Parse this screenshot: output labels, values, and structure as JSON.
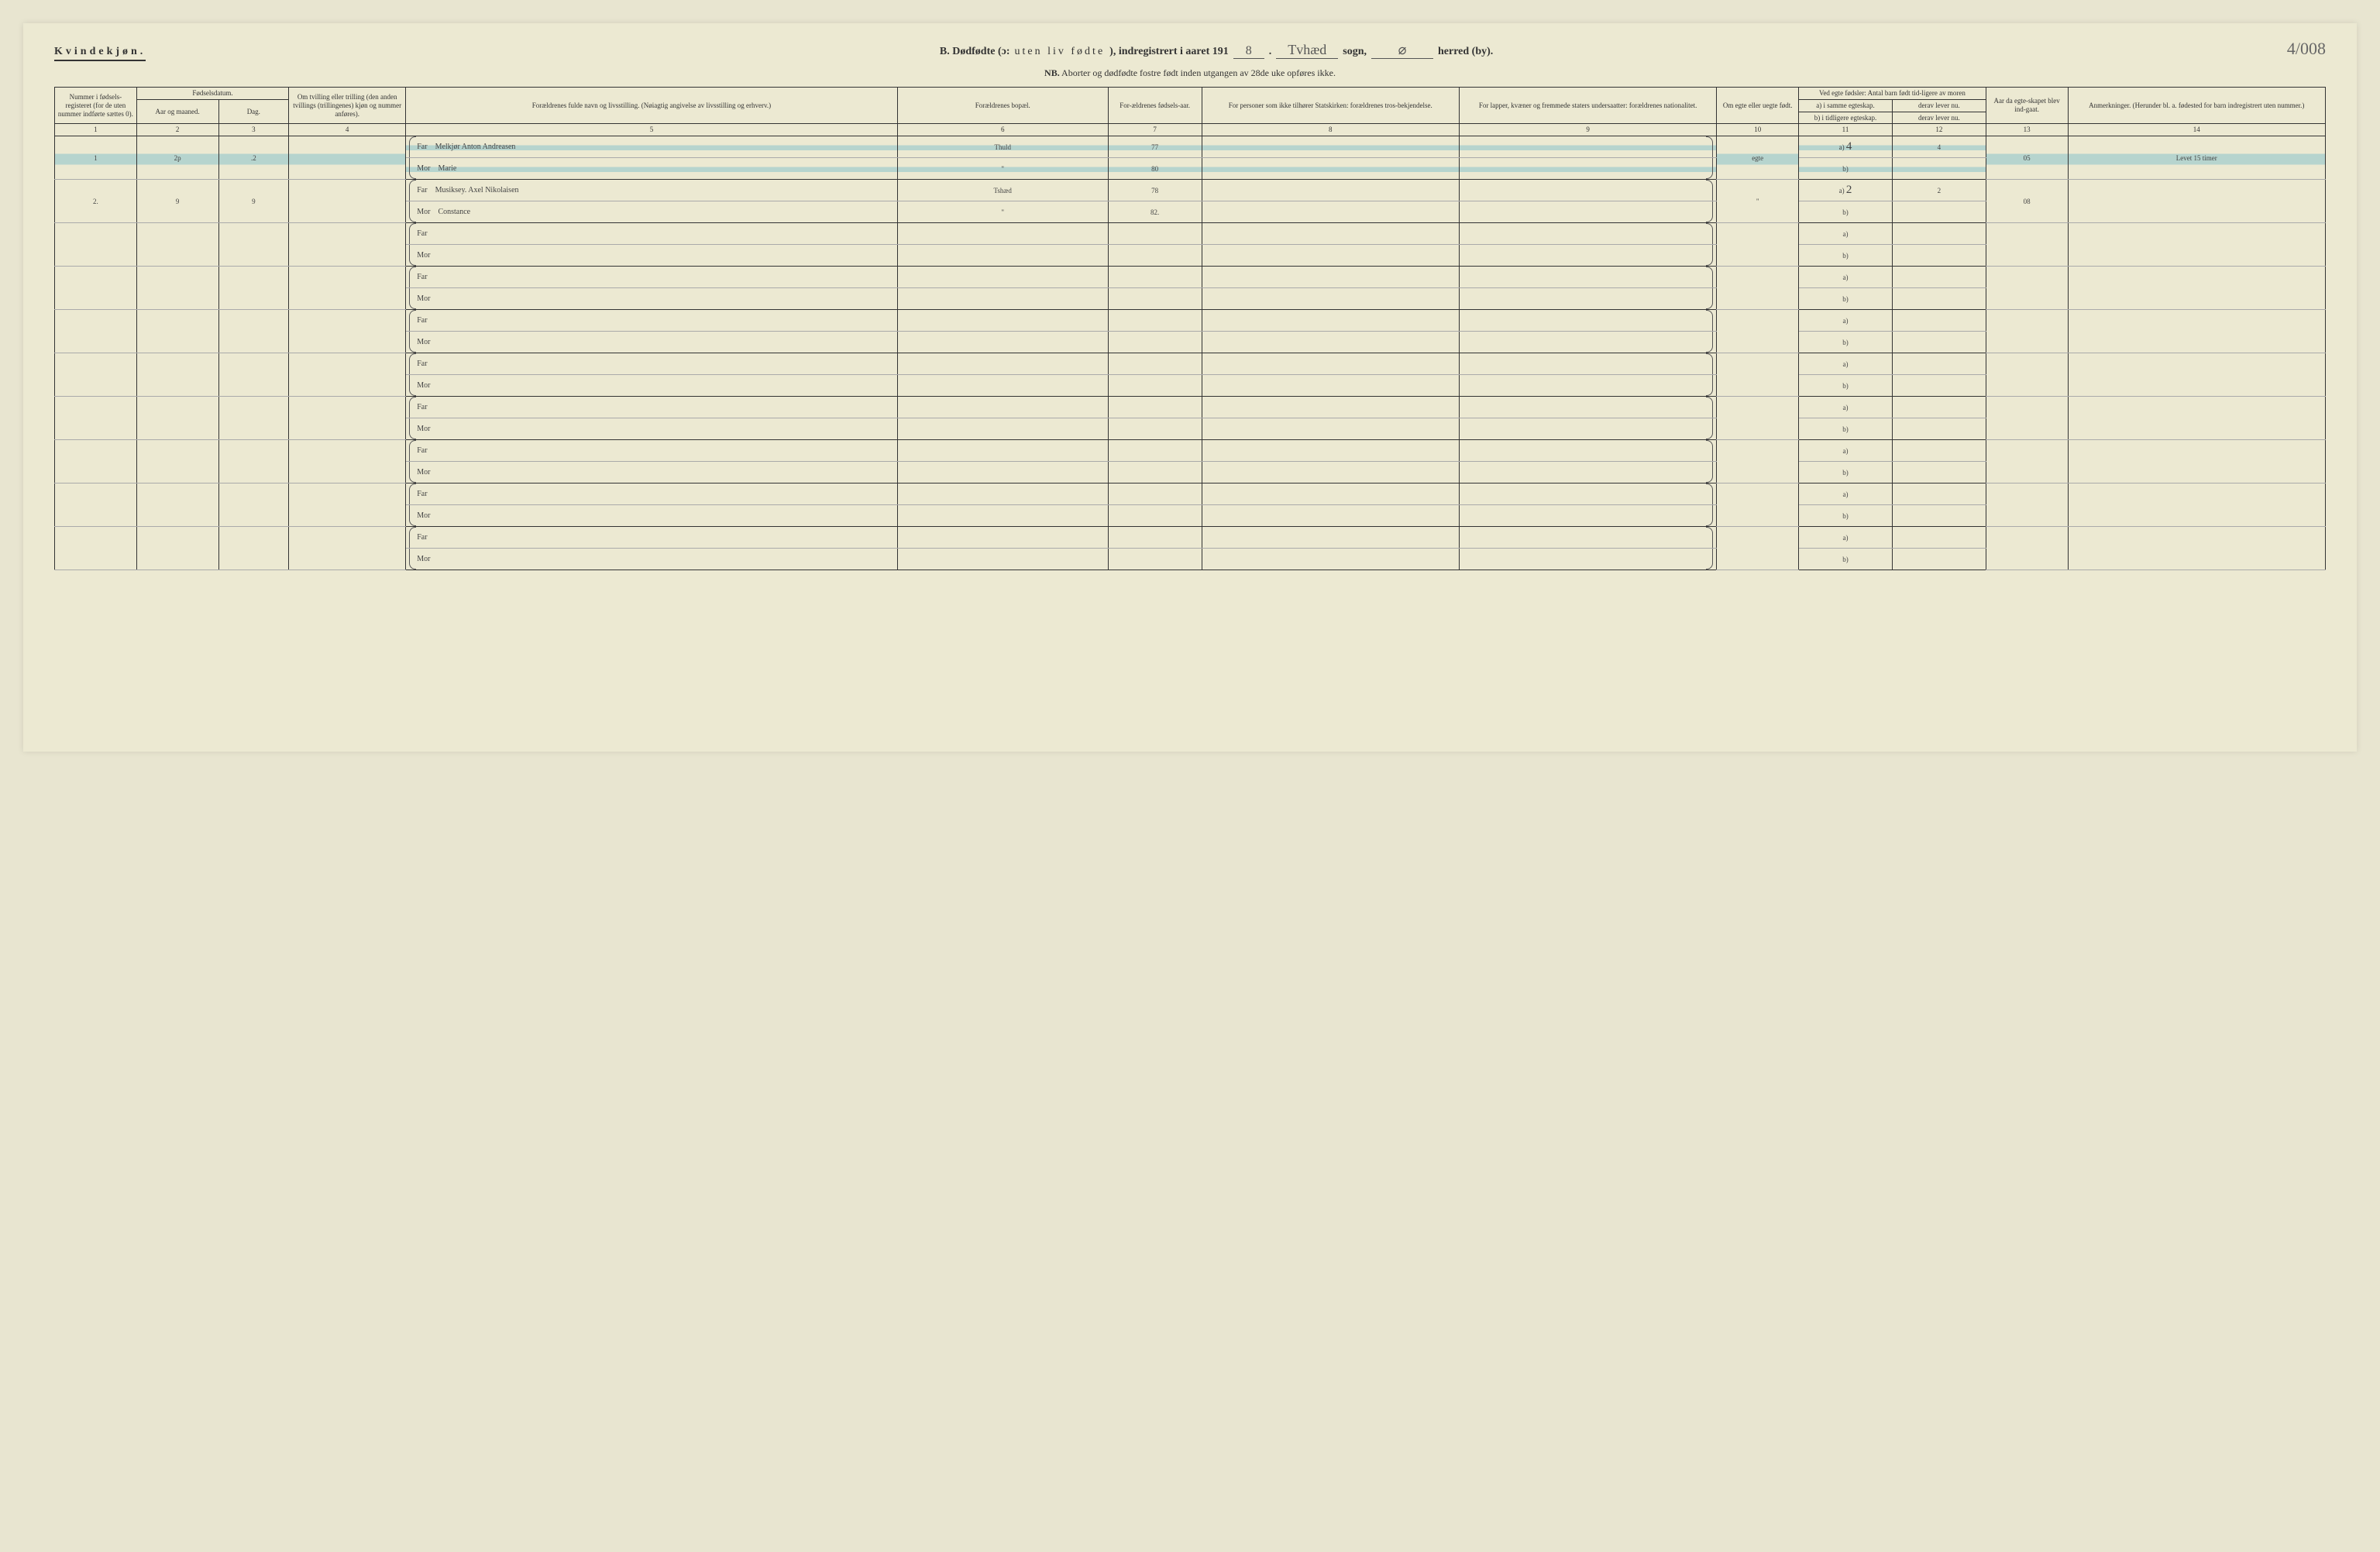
{
  "header": {
    "gender": "Kvindekjøn.",
    "title_prefix": "B. Dødfødte (ɔ:",
    "title_spaced": "uten liv fødte",
    "title_suffix": "), indregistrert i aaret 191",
    "year_digit": "8",
    "sogn_value": "Tvhæd",
    "sogn_label": "sogn,",
    "herred_value": "⌀",
    "herred_label": "herred (by).",
    "page_number": "4/008",
    "nb_prefix": "NB.",
    "nb_text": "Aborter og dødfødte fostre født inden utgangen av 28de uke opføres ikke."
  },
  "columns": {
    "c1": "Nummer i fødsels-registeret (for de uten nummer indførte sættes 0).",
    "c2_group": "Fødselsdatum.",
    "c2": "Aar og maaned.",
    "c3": "Dag.",
    "c4": "Om tvilling eller trilling (den anden tvillings (trillingenes) kjøn og nummer anføres).",
    "c5": "Forældrenes fulde navn og livsstilling. (Nøiagtig angivelse av livsstilling og erhverv.)",
    "c6": "Forældrenes bopæl.",
    "c7": "For-ældrenes fødsels-aar.",
    "c8": "For personer som ikke tilhører Statskirken: forældrenes tros-bekjendelse.",
    "c9": "For lapper, kvæner og fremmede staters undersaatter: forældrenes nationalitet.",
    "c10": "Om egte eller uegte født.",
    "c11_group": "Ved egte fødsler: Antal barn født tid-ligere av moren",
    "c11a": "a) i samme egteskap.",
    "c11b": "b) i tidligere egteskap.",
    "c12a": "derav lever nu.",
    "c12b": "derav lever nu.",
    "c13": "Aar da egte-skapet blev ind-gaat.",
    "c14": "Anmerkninger. (Herunder bl. a. fødested for barn indregistrert uten nummer.)",
    "far_label": "Far",
    "mor_label": "Mor",
    "a_label": "a)",
    "b_label": "b)",
    "nums": [
      "1",
      "2",
      "3",
      "4",
      "5",
      "6",
      "7",
      "8",
      "9",
      "10",
      "11",
      "12",
      "13",
      "14"
    ]
  },
  "rows": [
    {
      "num": "1",
      "month": "2p",
      "day": ".2",
      "far_name": "Melkjør Anton Andreasen",
      "far_place": "Thuld",
      "far_year": "77",
      "mor_name": "Marie",
      "mor_place": "\"",
      "mor_year": "80",
      "legit": "egte",
      "a_val": "4",
      "a_lever": "4",
      "marriage_year": "05",
      "remarks": "Levet 15 timer",
      "highlight": true
    },
    {
      "num": "2.",
      "month": "9",
      "day": "9",
      "far_name": "Musiksey. Axel Nikolaisen",
      "far_place": "Tshæd",
      "far_year": "78",
      "mor_name": "Constance",
      "mor_place": "\"",
      "mor_year": "82.",
      "legit": "\"",
      "a_val": "2",
      "a_lever": "2",
      "marriage_year": "08",
      "remarks": "",
      "highlight": false
    }
  ],
  "empty_row_count": 8,
  "style": {
    "background": "#ece9d2",
    "text_color": "#333",
    "handwriting_color": "#555",
    "highlight_color": "rgba(100,180,200,0.4)",
    "border_color": "#333"
  }
}
